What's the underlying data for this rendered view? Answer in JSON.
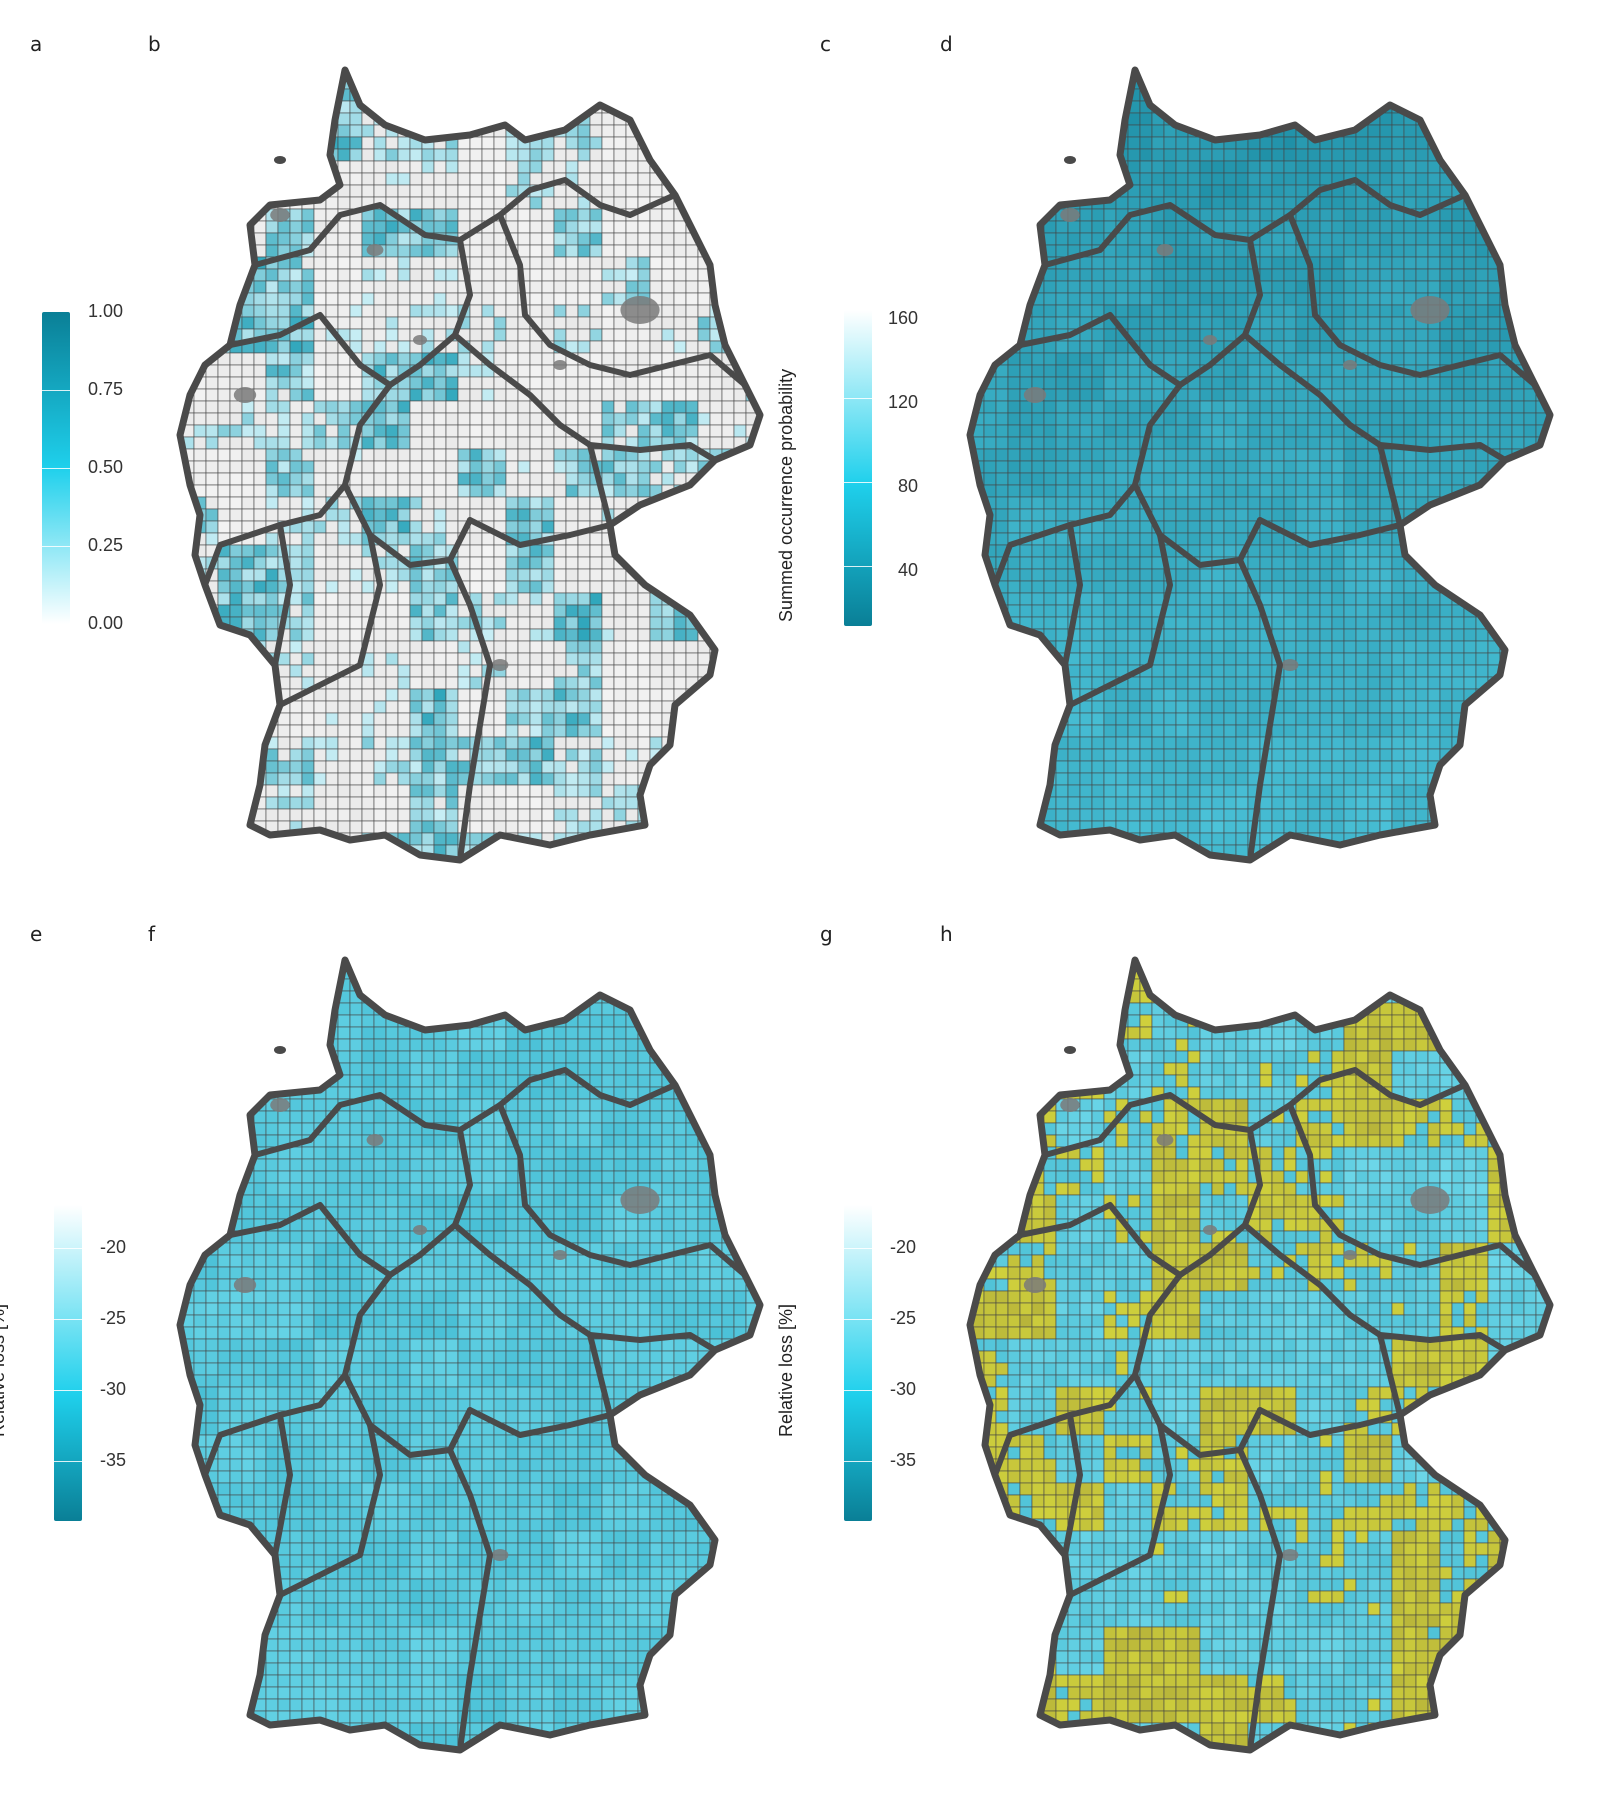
{
  "panels": {
    "a": "a",
    "b": "b",
    "c": "c",
    "d": "d",
    "e": "e",
    "f": "f",
    "g": "g",
    "h": "h"
  },
  "chart_data": [
    {
      "type": "heatmap",
      "panel": "b",
      "legend": {
        "title": "",
        "ticks": [
          "1.00",
          "0.75",
          "0.50",
          "0.25",
          "0.00"
        ],
        "range": [
          0,
          1
        ],
        "colors": [
          "#ffffff",
          "#1fd0ec",
          "#0a7f96"
        ]
      }
    },
    {
      "type": "heatmap",
      "panel": "d",
      "legend": {
        "title": "Summed occurrence probability",
        "ticks": [
          "160",
          "120",
          "80",
          "40"
        ],
        "range": [
          10,
          170
        ],
        "colors": [
          "#0a7f96",
          "#1fd0ec",
          "#ffffff"
        ]
      }
    },
    {
      "type": "heatmap",
      "panel": "f",
      "legend": {
        "title": "Relative loss [%]",
        "ticks": [
          "-20",
          "-25",
          "-30",
          "-35"
        ],
        "range": [
          -40,
          -16
        ],
        "colors": [
          "#0a7f96",
          "#1fd0ec",
          "#ffffff"
        ]
      }
    },
    {
      "type": "heatmap",
      "panel": "h",
      "legend": {
        "title": "Relative loss [%]",
        "ticks": [
          "-20",
          "-25",
          "-30",
          "-35"
        ],
        "range": [
          -40,
          -16
        ],
        "colors": [
          "#0a7f96",
          "#1fd0ec",
          "#ffffff"
        ]
      }
    }
  ],
  "colors": {
    "border": "#4a4a4a",
    "grid": "#444444",
    "yellow_overlay": "#d9d23a",
    "water": "#7a7a7a"
  }
}
